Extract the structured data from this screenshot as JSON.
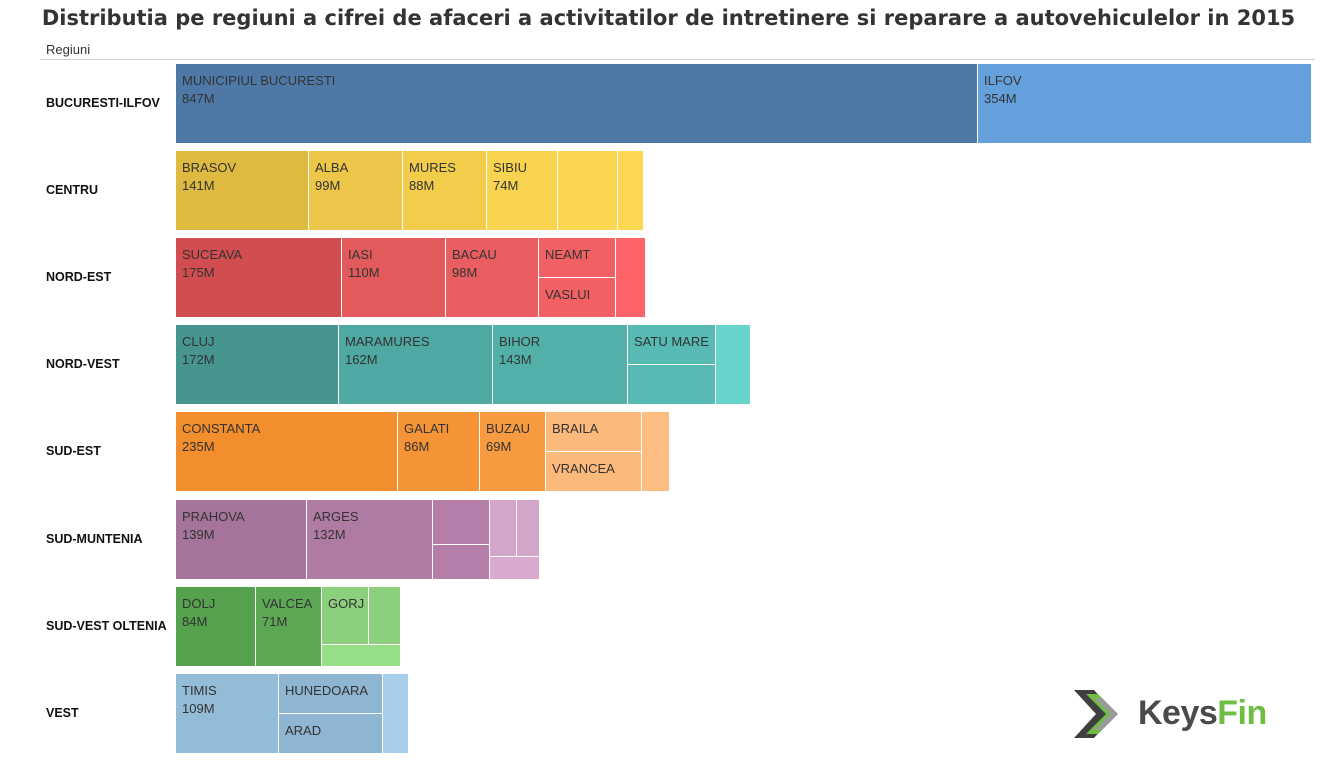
{
  "title": "Distributia pe regiuni a cifrei de afaceri a activitatilor de intretinere si reparare a autovehiculelor in 2015",
  "axis_header": "Regiuni",
  "logo": {
    "part1": "Keys",
    "part2": "Fin"
  },
  "chart_data": {
    "type": "treemap",
    "title": "Distributia pe regiuni a cifrei de afaceri a activitatilor de intretinere si reparare a autovehiculelor in 2015",
    "row_header": "Regiuni",
    "unit": "M",
    "regions": [
      {
        "name": "BUCURESTI-ILFOV",
        "color": "#4e79a7",
        "items": [
          {
            "name": "MUNICIPIUL BUCURESTI",
            "value": 847,
            "label": "847M",
            "color": "#4e79a7"
          },
          {
            "name": "ILFOV",
            "value": 354,
            "label": "354M",
            "color": "#64a0dc"
          }
        ]
      },
      {
        "name": "CENTRU",
        "color": "#e8c23d",
        "items": [
          {
            "name": "BRASOV",
            "value": 141,
            "label": "141M",
            "color": "#dfba40"
          },
          {
            "name": "ALBA",
            "value": 99,
            "label": "99M",
            "color": "#ecc74a"
          },
          {
            "name": "MURES",
            "value": 88,
            "label": "88M",
            "color": "#f2cd4c"
          },
          {
            "name": "SIBIU",
            "value": 74,
            "label": "74M",
            "color": "#f8d34f"
          },
          {
            "name": "",
            "value": 65,
            "label": "",
            "color": "#fad651"
          },
          {
            "name": "",
            "value": 27,
            "label": "",
            "color": "#fcd752"
          }
        ]
      },
      {
        "name": "NORD-EST",
        "color": "#e05a5a",
        "items": [
          {
            "name": "SUCEAVA",
            "value": 175,
            "label": "175M",
            "color": "#d14d4f"
          },
          {
            "name": "IASI",
            "value": 110,
            "label": "110M",
            "color": "#e35a5c"
          },
          {
            "name": "BACAU",
            "value": 98,
            "label": "98M",
            "color": "#ea5d60"
          },
          {
            "name": "NEAMT",
            "value": 40,
            "label": "",
            "color": "#f26064"
          },
          {
            "name": "VASLUI",
            "value": 40,
            "label": "",
            "color": "#f26064"
          },
          {
            "name": "",
            "value": 33,
            "label": "",
            "color": "#fc6469"
          }
        ]
      },
      {
        "name": "NORD-VEST",
        "color": "#4fa9a2",
        "items": [
          {
            "name": "CLUJ",
            "value": 172,
            "label": "172M",
            "color": "#46958f"
          },
          {
            "name": "MARAMURES",
            "value": 162,
            "label": "162M",
            "color": "#4fa8a2"
          },
          {
            "name": "BIHOR",
            "value": 143,
            "label": "143M",
            "color": "#53b0a9"
          },
          {
            "name": "SATU MARE",
            "value": 46,
            "label": "",
            "color": "#58bbb3"
          },
          {
            "name": "",
            "value": 46,
            "label": "",
            "color": "#58bbb3"
          },
          {
            "name": "",
            "value": 37,
            "label": "",
            "color": "#66d4cb"
          }
        ]
      },
      {
        "name": "SUD-EST",
        "color": "#f28e2b",
        "items": [
          {
            "name": "CONSTANTA",
            "value": 235,
            "label": "235M",
            "color": "#f28e2b"
          },
          {
            "name": "GALATI",
            "value": 86,
            "label": "86M",
            "color": "#f59437"
          },
          {
            "name": "BUZAU",
            "value": 69,
            "label": "69M",
            "color": "#f79a40"
          },
          {
            "name": "BRAILA",
            "value": 52,
            "label": "",
            "color": "#fbb97c"
          },
          {
            "name": "VRANCEA",
            "value": 52,
            "label": "",
            "color": "#fbb97c"
          },
          {
            "name": "",
            "value": 30,
            "label": "",
            "color": "#fdbd82"
          }
        ]
      },
      {
        "name": "SUD-MUNTENIA",
        "color": "#b07aa1",
        "items": [
          {
            "name": "PRAHOVA",
            "value": 139,
            "label": "139M",
            "color": "#a6749a"
          },
          {
            "name": "ARGES",
            "value": 132,
            "label": "132M",
            "color": "#b07ba3"
          },
          {
            "name": "",
            "value": 30,
            "label": "",
            "color": "#b57ea8"
          },
          {
            "name": "",
            "value": 30,
            "label": "",
            "color": "#b57ea8"
          },
          {
            "name": "",
            "value": 14,
            "label": "",
            "color": "#d2a5c9"
          },
          {
            "name": "",
            "value": 14,
            "label": "",
            "color": "#d2a5c9"
          },
          {
            "name": "",
            "value": 12,
            "label": "",
            "color": "#d9aace"
          }
        ]
      },
      {
        "name": "SUD-VEST OLTENIA",
        "color": "#59a14f",
        "items": [
          {
            "name": "DOLJ",
            "value": 84,
            "label": "84M",
            "color": "#56a14d"
          },
          {
            "name": "VALCEA",
            "value": 71,
            "label": "71M",
            "color": "#5ea755"
          },
          {
            "name": "GORJ",
            "value": 35,
            "label": "",
            "color": "#8ccf7d"
          },
          {
            "name": "",
            "value": 23,
            "label": "",
            "color": "#8ccf7d"
          },
          {
            "name": "",
            "value": 14,
            "label": "",
            "color": "#96df86"
          }
        ]
      },
      {
        "name": "VEST",
        "color": "#94bcd8",
        "items": [
          {
            "name": "TIMIS",
            "value": 109,
            "label": "109M",
            "color": "#93bcd8"
          },
          {
            "name": "HUNEDOARA",
            "value": 52,
            "label": "",
            "color": "#8eb5d1"
          },
          {
            "name": "ARAD",
            "value": 52,
            "label": "",
            "color": "#8eb5d1"
          },
          {
            "name": "",
            "value": 29,
            "label": "",
            "color": "#a6cdea"
          }
        ]
      }
    ]
  }
}
